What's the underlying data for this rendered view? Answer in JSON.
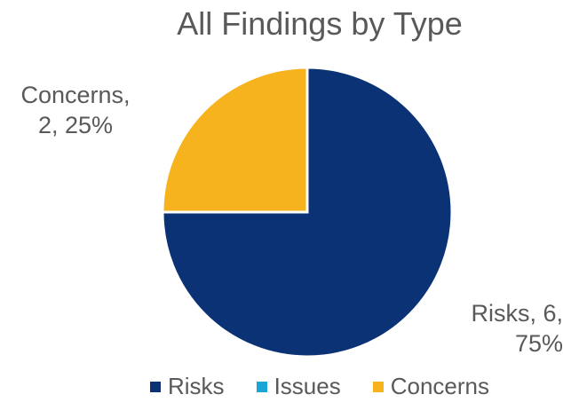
{
  "chart_data": {
    "type": "pie",
    "title": "All Findings by Type",
    "categories": [
      "Risks",
      "Issues",
      "Concerns"
    ],
    "values": [
      6,
      0,
      2
    ],
    "percentages": [
      "75%",
      "0%",
      "25%"
    ],
    "colors": [
      "#0B3275",
      "#1BA5D6",
      "#F6B31D"
    ],
    "data_labels": {
      "concerns_line1": "Concerns,",
      "concerns_line2": "2, 25%",
      "risks_line1": "Risks, 6,",
      "risks_line2": "75%"
    },
    "legend": {
      "placement": "bottom",
      "entries": [
        "Risks",
        "Issues",
        "Concerns"
      ]
    }
  }
}
